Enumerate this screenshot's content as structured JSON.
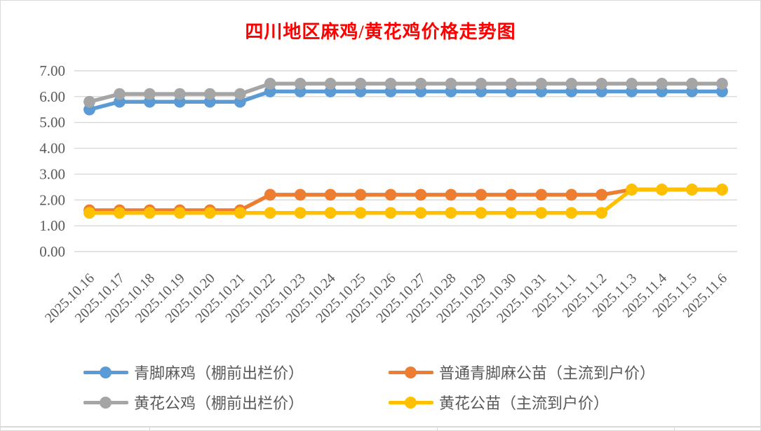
{
  "chart_data": {
    "type": "line",
    "title": "四川地区麻鸡/黄花鸡价格走势图",
    "title_color": "#FF0000",
    "x": [
      "2025.10.16",
      "2025.10.17",
      "2025.10.18",
      "2025.10.19",
      "2025.10.20",
      "2025.10.21",
      "2025.10.22",
      "2025.10.23",
      "2025.10.24",
      "2025.10.25",
      "2025.10.26",
      "2025.10.27",
      "2025.10.28",
      "2025.10.29",
      "2025.10.30",
      "2025.10.31",
      "2025.11.1",
      "2025.11.2",
      "2025.11.3",
      "2025.11.4",
      "2025.11.5",
      "2025.11.6"
    ],
    "series": [
      {
        "name": "青脚麻鸡（棚前出栏价）",
        "color": "#5B9BD5",
        "values": [
          5.5,
          5.8,
          5.8,
          5.8,
          5.8,
          5.8,
          6.2,
          6.2,
          6.2,
          6.2,
          6.2,
          6.2,
          6.2,
          6.2,
          6.2,
          6.2,
          6.2,
          6.2,
          6.2,
          6.2,
          6.2,
          6.2
        ]
      },
      {
        "name": "普通青脚麻公苗（主流到户价）",
        "color": "#ED7D31",
        "values": [
          1.6,
          1.6,
          1.6,
          1.6,
          1.6,
          1.6,
          2.2,
          2.2,
          2.2,
          2.2,
          2.2,
          2.2,
          2.2,
          2.2,
          2.2,
          2.2,
          2.2,
          2.2,
          2.4,
          2.4,
          2.4,
          2.4
        ]
      },
      {
        "name": "黄花公鸡（棚前出栏价）",
        "color": "#A5A5A5",
        "values": [
          5.8,
          6.1,
          6.1,
          6.1,
          6.1,
          6.1,
          6.5,
          6.5,
          6.5,
          6.5,
          6.5,
          6.5,
          6.5,
          6.5,
          6.5,
          6.5,
          6.5,
          6.5,
          6.5,
          6.5,
          6.5,
          6.5
        ]
      },
      {
        "name": "黄花公苗（主流到户价）",
        "color": "#FFC000",
        "values": [
          1.5,
          1.5,
          1.5,
          1.5,
          1.5,
          1.5,
          1.5,
          1.5,
          1.5,
          1.5,
          1.5,
          1.5,
          1.5,
          1.5,
          1.5,
          1.5,
          1.5,
          1.5,
          2.4,
          2.4,
          2.4,
          2.4
        ]
      }
    ],
    "ylim": [
      0,
      7
    ],
    "yticks": [
      {
        "value": 0,
        "label": "0.00"
      },
      {
        "value": 1,
        "label": "1.00"
      },
      {
        "value": 2,
        "label": "2.00"
      },
      {
        "value": 3,
        "label": "3.00"
      },
      {
        "value": 4,
        "label": "4.00"
      },
      {
        "value": 5,
        "label": "5.00"
      },
      {
        "value": 6,
        "label": "6.00"
      },
      {
        "value": 7,
        "label": "7.00"
      }
    ],
    "grid": true,
    "legend_position": "bottom",
    "marker": "circle"
  },
  "colors": {
    "grid": "#D9D9D9",
    "axis_text": "#595959",
    "border": "#D9D9D9",
    "background": "#FFFFFF"
  }
}
